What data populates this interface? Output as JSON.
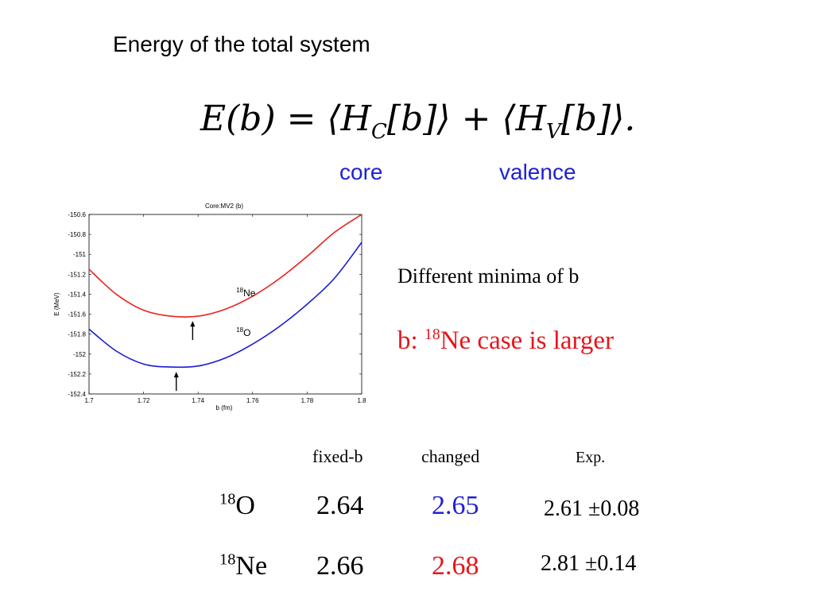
{
  "slide": {
    "title": "Energy of the total system",
    "equation": {
      "lhs": "E(b) = ",
      "term1_open": "⟨H",
      "term1_sub": "C",
      "term1_close": "[b]⟩",
      "plus": " + ",
      "term2_open": "⟨H",
      "term2_sub": "V",
      "term2_close": "[b]⟩."
    },
    "labels": {
      "core": "core",
      "valence": "valence"
    },
    "notes": {
      "minima": "Different minima of b",
      "larger_prefix": "b: ",
      "larger_sup": "18",
      "larger_rest": "Ne case is larger"
    },
    "colors": {
      "blue": "#1f22d1",
      "red": "#e5161c",
      "ne_curve": "#e8231e",
      "o_curve": "#1a1ad6"
    }
  },
  "chart_data": {
    "type": "line",
    "title": "Core:MV2 (b)",
    "xlabel": "b (fm)",
    "ylabel": "E (MeV)",
    "xlim": [
      1.7,
      1.8
    ],
    "ylim": [
      -152.4,
      -150.6
    ],
    "x_ticks": [
      "1.7",
      "1.72",
      "1.74",
      "1.76",
      "1.78",
      "1.8"
    ],
    "y_ticks": [
      "-150.6",
      "-150.8",
      "-151",
      "-151.2",
      "-151.4",
      "-151.6",
      "-151.8",
      "-152",
      "-152.2",
      "-152.4"
    ],
    "series": [
      {
        "name": "18Ne",
        "label_sup": "18",
        "label_text": "Ne",
        "x": [
          1.7,
          1.71,
          1.72,
          1.73,
          1.74,
          1.75,
          1.76,
          1.77,
          1.78,
          1.79,
          1.8
        ],
        "y": [
          -151.15,
          -151.4,
          -151.56,
          -151.62,
          -151.62,
          -151.55,
          -151.42,
          -151.24,
          -151.02,
          -150.78,
          -150.6
        ],
        "minimum_x": 1.738
      },
      {
        "name": "18O",
        "label_sup": "18",
        "label_text": "O",
        "x": [
          1.7,
          1.71,
          1.72,
          1.73,
          1.74,
          1.75,
          1.76,
          1.77,
          1.78,
          1.79,
          1.8
        ],
        "y": [
          -151.75,
          -151.97,
          -152.1,
          -152.13,
          -152.12,
          -152.04,
          -151.9,
          -151.72,
          -151.5,
          -151.24,
          -150.88
        ],
        "minimum_x": 1.732
      }
    ]
  },
  "table": {
    "headers": {
      "fixed": "fixed-b",
      "changed": "changed",
      "exp": "Exp."
    },
    "rows": [
      {
        "sup": "18",
        "name": "O",
        "fixed": "2.64",
        "changed": "2.65",
        "exp": "2.61 ±0.08"
      },
      {
        "sup": "18",
        "name": "Ne",
        "fixed": "2.66",
        "changed": "2.68",
        "exp": "2.81 ±0.14"
      }
    ]
  }
}
